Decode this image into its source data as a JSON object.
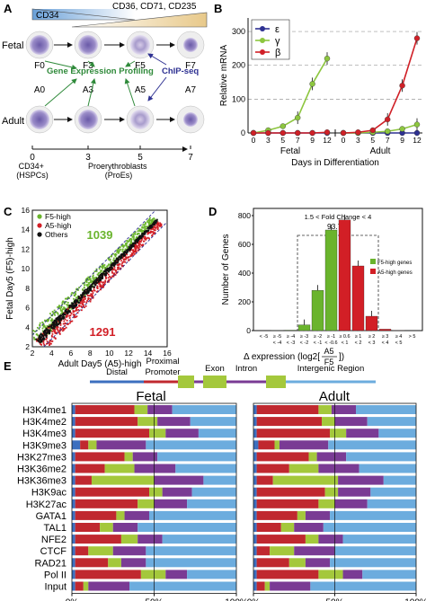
{
  "panels": {
    "A": {
      "letter": "A",
      "cd34": "CD34",
      "cd_markers": "CD36, CD71, CD235",
      "fetal": "Fetal",
      "adult": "Adult",
      "fetal_stages": [
        "F0",
        "F3",
        "F5",
        "F7"
      ],
      "adult_stages": [
        "A0",
        "A3",
        "A5",
        "A7"
      ],
      "gep": "Gene Expression Profiling",
      "chip": "ChIP-seq",
      "timeline_ticks": [
        "0",
        "3",
        "5",
        "7"
      ],
      "hspc": "CD34+\n(HSPCs)",
      "proe": "Proerythroblasts\n(ProEs)"
    },
    "B": {
      "letter": "B",
      "legend": [
        "ε",
        "γ",
        "β"
      ]
    },
    "C": {
      "letter": "C"
    },
    "D": {
      "letter": "D"
    },
    "E": {
      "letter": "E",
      "fetal_title": "Fetal",
      "adult_title": "Adult",
      "gene_model": [
        "Distal",
        "Proximal",
        "Promoter",
        "Exon",
        "Intron",
        "Intergenic Region"
      ],
      "axis_labels": [
        "0%",
        "50%",
        "100%"
      ],
      "colors": {
        "distal": "#3c6fbf",
        "proximal": "#c0282f",
        "exon": "#a4c83c",
        "intron": "#7a3b94",
        "intergenic": "#6cacde"
      }
    }
  },
  "chart_data": [
    {
      "type": "line",
      "panel": "B",
      "ylabel": "Relative mRNA",
      "xlabel": "Days in Differentiation",
      "ylim": [
        0,
        300
      ],
      "yticks": [
        0,
        100,
        200,
        300
      ],
      "groups": [
        {
          "name": "Fetal",
          "x": [
            0,
            3,
            5,
            7,
            9,
            12
          ],
          "series": [
            {
              "name": "ε",
              "color": "#2e3192",
              "values": [
                0,
                0,
                0,
                0,
                0,
                0
              ]
            },
            {
              "name": "γ",
              "color": "#8dc63f",
              "values": [
                0,
                8,
                20,
                45,
                145,
                220
              ]
            },
            {
              "name": "β",
              "color": "#d02027",
              "values": [
                0,
                0,
                0,
                0,
                0,
                2
              ]
            }
          ]
        },
        {
          "name": "Adult",
          "x": [
            0,
            3,
            5,
            7,
            9,
            12
          ],
          "series": [
            {
              "name": "ε",
              "color": "#2e3192",
              "values": [
                0,
                0,
                0,
                0,
                0,
                0
              ]
            },
            {
              "name": "γ",
              "color": "#8dc63f",
              "values": [
                0,
                0,
                2,
                5,
                12,
                25
              ]
            },
            {
              "name": "β",
              "color": "#d02027",
              "values": [
                0,
                2,
                8,
                40,
                140,
                280
              ]
            }
          ]
        }
      ]
    },
    {
      "type": "scatter",
      "panel": "C",
      "xlabel": "Adult Day5 (A5)-high",
      "ylabel": "Fetal Day5 (F5)-high",
      "xlim": [
        2,
        16
      ],
      "ylim": [
        2,
        16
      ],
      "ticks": [
        2,
        4,
        6,
        8,
        10,
        12,
        14,
        16
      ],
      "legend": [
        "F5-high",
        "A5-high",
        "Others"
      ],
      "colors": {
        "F5-high": "#6ab42d",
        "A5-high": "#d21f26",
        "Others": "#111111"
      },
      "counts": {
        "F5-high": "1039",
        "A5-high": "1291"
      }
    },
    {
      "type": "bar",
      "panel": "D",
      "ylabel": "Number of Genes",
      "ylim": [
        0,
        800
      ],
      "yticks": [
        0,
        200,
        400,
        600,
        800
      ],
      "categories": [
        "<-5",
        "≥-5,<-4",
        "≥-4,<-3",
        "≥-3,<-2",
        "≥-2,<-1",
        "≥-1,<-0.6",
        "≥0.6,<1",
        "≥1,<2",
        "≥2,<3",
        "≥3,<4",
        "≥4,<5",
        ">5"
      ],
      "category_lines": [
        [
          "< -5",
          ""
        ],
        [
          "≥ -5",
          "< -4"
        ],
        [
          "≥ -4",
          "< -3"
        ],
        [
          "≥ -3",
          "< -2"
        ],
        [
          "≥ -2",
          "< -1"
        ],
        [
          "≥ -1",
          "< -0.6"
        ],
        [
          "≥ 0.6",
          "< 1"
        ],
        [
          "≥ 1",
          "< 2"
        ],
        [
          "≥ 2",
          "< 3"
        ],
        [
          "≥ 3",
          "< 4"
        ],
        [
          "≥ 4",
          "< 5"
        ],
        [
          "> 5",
          ""
        ]
      ],
      "values": [
        0,
        1,
        3,
        40,
        280,
        700,
        770,
        450,
        100,
        10,
        2,
        0
      ],
      "colors": [
        "#6ab42d",
        "#6ab42d",
        "#6ab42d",
        "#6ab42d",
        "#6ab42d",
        "#6ab42d",
        "#d21f26",
        "#d21f26",
        "#d21f26",
        "#d21f26",
        "#d21f26",
        "#d21f26"
      ],
      "legend": [
        "F5-high genes",
        "A5-high genes"
      ],
      "box_label": "1.5 < Fold Change < 4",
      "box_percent": "93.7%",
      "xlabel_prefix": "Δ expression (log2[",
      "xlabel_num": "A5",
      "xlabel_den": "F5",
      "xlabel_suffix": "])"
    },
    {
      "type": "bar",
      "panel": "E",
      "stacked": true,
      "horizontal": true,
      "categories": [
        "H3K4me1",
        "H3K4me2",
        "H3K4me3",
        "H3K9me3",
        "H3K27me3",
        "H3K36me2",
        "H3K36me3",
        "H3K9ac",
        "H3K27ac",
        "GATA1",
        "TAL1",
        "NFE2",
        "CTCF",
        "RAD21",
        "Pol II",
        "Input"
      ],
      "segments": [
        "Distal",
        "Proximal",
        "Exon",
        "Intron",
        "Intergenic"
      ],
      "fetal": [
        [
          2,
          36,
          8,
          15,
          39
        ],
        [
          2,
          38,
          12,
          20,
          28
        ],
        [
          2,
          45,
          10,
          20,
          23
        ],
        [
          5,
          5,
          5,
          30,
          55
        ],
        [
          2,
          30,
          5,
          15,
          48
        ],
        [
          2,
          18,
          18,
          25,
          37
        ],
        [
          2,
          10,
          38,
          30,
          20
        ],
        [
          2,
          45,
          8,
          18,
          27
        ],
        [
          2,
          38,
          10,
          20,
          30
        ],
        [
          2,
          25,
          5,
          15,
          53
        ],
        [
          2,
          15,
          8,
          15,
          60
        ],
        [
          2,
          28,
          10,
          15,
          45
        ],
        [
          2,
          8,
          15,
          20,
          55
        ],
        [
          2,
          20,
          8,
          15,
          55
        ],
        [
          2,
          40,
          15,
          13,
          30
        ],
        [
          2,
          5,
          3,
          25,
          65
        ]
      ],
      "adult": [
        [
          2,
          38,
          8,
          15,
          37
        ],
        [
          2,
          40,
          8,
          20,
          30
        ],
        [
          2,
          45,
          10,
          20,
          23
        ],
        [
          3,
          10,
          3,
          30,
          54
        ],
        [
          2,
          32,
          5,
          18,
          43
        ],
        [
          2,
          20,
          18,
          25,
          35
        ],
        [
          2,
          10,
          40,
          28,
          20
        ],
        [
          2,
          42,
          8,
          20,
          28
        ],
        [
          2,
          38,
          10,
          20,
          30
        ],
        [
          2,
          25,
          5,
          15,
          53
        ],
        [
          2,
          15,
          8,
          18,
          57
        ],
        [
          2,
          30,
          8,
          15,
          45
        ],
        [
          2,
          8,
          15,
          25,
          50
        ],
        [
          2,
          20,
          10,
          15,
          53
        ],
        [
          2,
          38,
          15,
          12,
          33
        ],
        [
          2,
          5,
          3,
          25,
          65
        ]
      ]
    }
  ]
}
